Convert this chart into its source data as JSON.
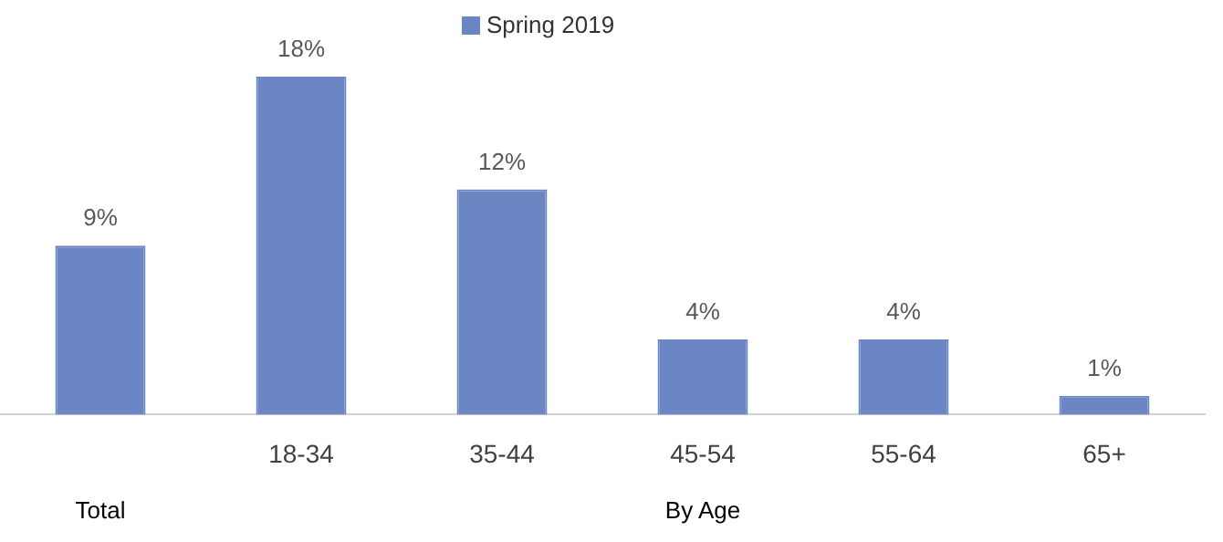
{
  "chart_data": {
    "type": "bar",
    "categories": [
      null,
      "18-34",
      "35-44",
      "45-54",
      "55-64",
      "65+"
    ],
    "series": [
      {
        "name": "Spring 2019",
        "color": "#6b86c2",
        "values": [
          9,
          18,
          12,
          4,
          4,
          1
        ],
        "value_labels": [
          "9%",
          "18%",
          "12%",
          "4%",
          "4%",
          "1%"
        ]
      }
    ],
    "annotations": [
      "Total",
      "By Age"
    ],
    "tick_labels": "x",
    "grid": false,
    "legend": "top"
  }
}
